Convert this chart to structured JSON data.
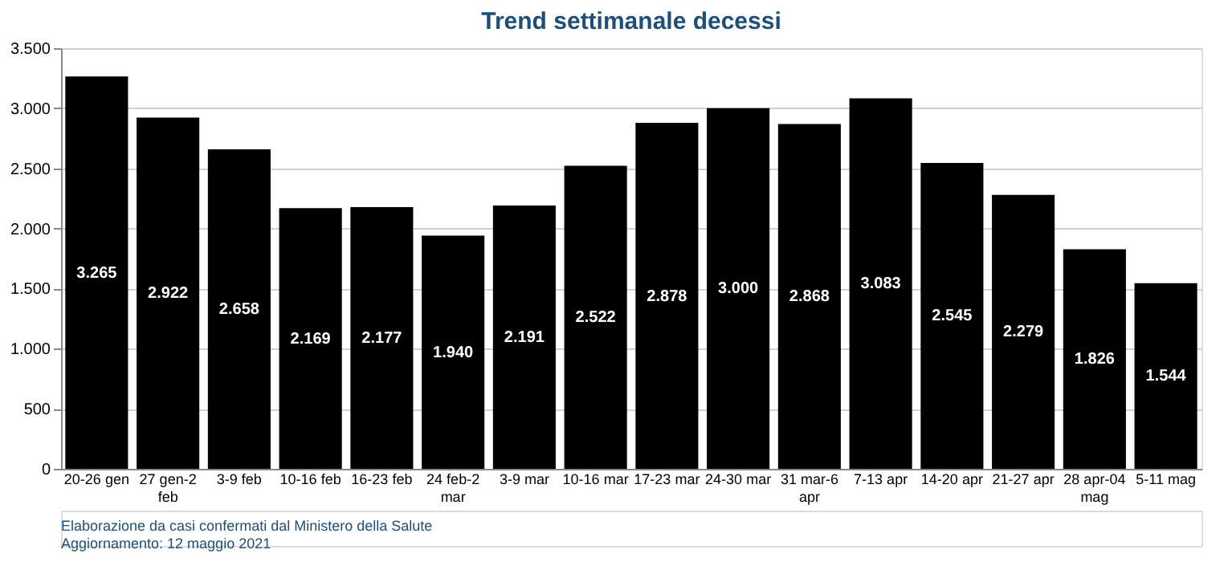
{
  "chart_data": {
    "type": "bar",
    "title": "Trend settimanale decessi",
    "categories": [
      "20-26 gen",
      "27 gen-2 feb",
      "3-9 feb",
      "10-16 feb",
      "16-23 feb",
      "24 feb-2 mar",
      "3-9 mar",
      "10-16 mar",
      "17-23 mar",
      "24-30 mar",
      "31 mar-6 apr",
      "7-13 apr",
      "14-20 apr",
      "21-27 apr",
      "28 apr-04 mag",
      "5-11 mag"
    ],
    "values": [
      3265,
      2922,
      2658,
      2169,
      2177,
      1940,
      2191,
      2522,
      2878,
      3000,
      2868,
      3083,
      2545,
      2279,
      1826,
      1544
    ],
    "value_labels": [
      "3.265",
      "2.922",
      "2.658",
      "2.169",
      "2.177",
      "1.940",
      "2.191",
      "2.522",
      "2.878",
      "3.000",
      "2.868",
      "3.083",
      "2.545",
      "2.279",
      "1.826",
      "1.544"
    ],
    "color": "#000000",
    "ylim": [
      0,
      3500
    ],
    "yticks": [
      {
        "value": 0,
        "label": "0"
      },
      {
        "value": 500,
        "label": "500"
      },
      {
        "value": 1000,
        "label": "1.000"
      },
      {
        "value": 1500,
        "label": "1.500"
      },
      {
        "value": 2000,
        "label": "2.000"
      },
      {
        "value": 2500,
        "label": "2.500"
      },
      {
        "value": 3000,
        "label": "3.000"
      },
      {
        "value": 3500,
        "label": "3.500"
      }
    ],
    "grid": "y",
    "annotations": [
      "Elaborazione da casi confermati dal Ministero della Salute",
      "Aggiornamento: 12 maggio 2021"
    ]
  }
}
